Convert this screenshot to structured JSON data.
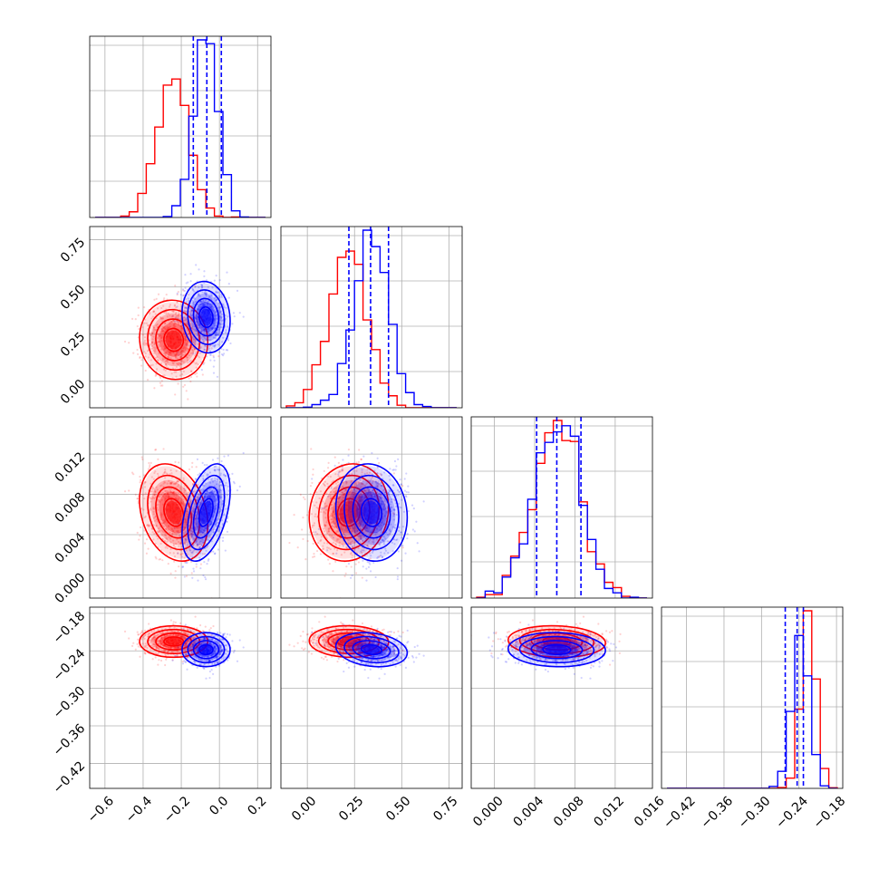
{
  "chart_data": {
    "type": "corner",
    "parameters": [
      "",
      "",
      "",
      ""
    ],
    "series": [
      {
        "name": "",
        "color": "#ff0000",
        "mean": [
          -0.24,
          0.22,
          0.0062,
          -0.225
        ],
        "sd": [
          0.085,
          0.1,
          0.0023,
          0.012
        ],
        "corr_01": -0.05,
        "corr_02": -0.25,
        "corr_12": 0.1,
        "corr_13": -0.05,
        "corr_23": -0.1
      },
      {
        "name": "",
        "color": "#0000ff",
        "mean": [
          -0.07,
          0.34,
          0.0062,
          -0.238
        ],
        "sd": [
          0.06,
          0.09,
          0.0023,
          0.013
        ],
        "corr_01": -0.1,
        "corr_02": 0.45,
        "corr_12": -0.1,
        "corr_13": -0.2,
        "corr_23": -0.05
      }
    ],
    "quantile_lines": {
      "color": "#0000ff",
      "values": [
        [
          -0.137,
          -0.066,
          0.01
        ],
        [
          0.22,
          0.335,
          0.43
        ],
        [
          0.0042,
          0.0062,
          0.0086
        ],
        [
          -0.262,
          -0.243,
          -0.233
        ]
      ]
    },
    "axis_ranges": [
      [
        -0.68,
        0.27
      ],
      [
        -0.14,
        0.82
      ],
      [
        -0.0023,
        0.0157
      ],
      [
        -0.46,
        -0.17
      ]
    ],
    "tick_labels": [
      [
        "−0.6",
        "−0.4",
        "−0.2",
        "0.0",
        "0.2"
      ],
      [
        "0.00",
        "0.25",
        "0.50",
        "0.75"
      ],
      [
        "0.000",
        "0.004",
        "0.008",
        "0.012",
        "0.016"
      ],
      [
        "−0.42",
        "−0.36",
        "−0.30",
        "−0.24",
        "−0.18"
      ]
    ],
    "tick_values": [
      [
        -0.6,
        -0.4,
        -0.2,
        0.0,
        0.2
      ],
      [
        0.0,
        0.25,
        0.5,
        0.75
      ],
      [
        0.0,
        0.004,
        0.008,
        0.012,
        0.016
      ],
      [
        -0.42,
        -0.36,
        -0.3,
        -0.24,
        -0.18
      ]
    ],
    "grid": true,
    "histogram_bins": 20,
    "samples_per_series": 1400
  }
}
